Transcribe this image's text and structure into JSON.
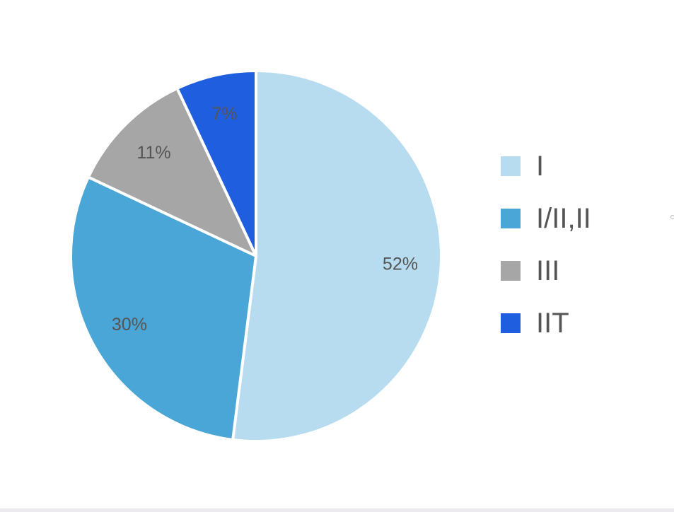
{
  "chart_data": {
    "type": "pie",
    "title": "",
    "categories": [
      "I",
      "I/II,II",
      "III",
      "IIT"
    ],
    "values": [
      52,
      30,
      11,
      7
    ],
    "labels": [
      "52%",
      "30%",
      "11%",
      "7%"
    ],
    "colors": [
      "#b8dcef",
      "#49a6d6",
      "#a6a6a6",
      "#1f5fdf"
    ],
    "legend_position": "right",
    "start_angle": "12 o'clock",
    "direction": "clockwise"
  }
}
